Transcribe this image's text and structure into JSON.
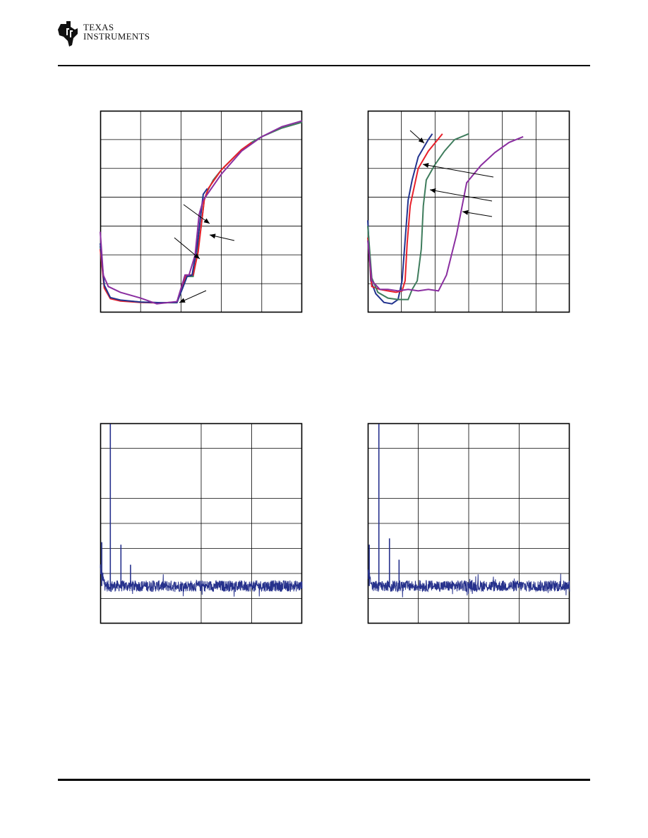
{
  "header": {
    "brand_line1": "TEXAS",
    "brand_line2": "INSTRUMENTS",
    "logo_icon": "ti-state-logo-icon"
  },
  "colors": {
    "series_blue": "#22338f",
    "series_red": "#e8202a",
    "series_green": "#3e7c5c",
    "series_purple": "#8a2ea0",
    "spectrum_blue": "#26318c",
    "grid": "#000000"
  },
  "chart_data": [
    {
      "type": "line",
      "panel": "top-left",
      "xlim": [
        0,
        10
      ],
      "ylim": [
        0,
        7
      ],
      "grid": true,
      "x_divisions": 5,
      "y_gridlines": [
        1,
        2,
        3,
        4,
        5,
        6
      ],
      "arrows": 4,
      "series": [
        {
          "color": "#3e7c5c",
          "x": [
            0,
            0.2,
            0.5,
            1.0,
            2.0,
            3.0,
            3.8,
            4.1,
            4.3,
            4.6,
            4.8,
            5.0,
            5.15,
            5.3,
            5.6,
            6.0,
            6.5,
            7.0,
            7.5,
            8.0,
            9.0,
            10.0
          ],
          "y": [
            2.3,
            0.9,
            0.5,
            0.42,
            0.36,
            0.34,
            0.34,
            0.9,
            1.25,
            1.25,
            2.0,
            3.0,
            3.9,
            4.2,
            4.6,
            4.95,
            5.3,
            5.65,
            5.9,
            6.1,
            6.4,
            6.6
          ]
        },
        {
          "color": "#e8202a",
          "x": [
            0,
            0.2,
            0.5,
            1.0,
            2.0,
            3.0,
            3.8,
            4.05,
            4.25,
            4.6,
            4.85,
            5.0,
            5.15,
            5.35,
            5.7,
            6.0,
            6.5,
            7.0,
            7.5
          ],
          "y": [
            2.2,
            0.85,
            0.48,
            0.4,
            0.35,
            0.33,
            0.36,
            0.9,
            1.3,
            1.3,
            2.1,
            3.0,
            3.9,
            4.3,
            4.65,
            4.95,
            5.3,
            5.65,
            5.9
          ]
        },
        {
          "color": "#22338f",
          "x": [
            0,
            0.2,
            0.5,
            1.0,
            2.0,
            3.0,
            3.8,
            4.1,
            4.3,
            4.55,
            4.8,
            5.0,
            5.1,
            5.3
          ],
          "y": [
            2.4,
            0.95,
            0.52,
            0.43,
            0.36,
            0.34,
            0.35,
            0.88,
            1.25,
            1.3,
            2.3,
            3.5,
            4.1,
            4.3
          ]
        },
        {
          "color": "#8a2ea0",
          "x": [
            0,
            0.15,
            0.4,
            1.0,
            2.0,
            2.8,
            3.8,
            4.2,
            4.4,
            4.7,
            4.9,
            5.1,
            5.3,
            6.0,
            7.0,
            8.0,
            9.0,
            10.0
          ],
          "y": [
            2.8,
            1.3,
            0.9,
            0.7,
            0.5,
            0.3,
            0.38,
            1.3,
            1.3,
            2.0,
            3.4,
            3.9,
            4.1,
            4.8,
            5.6,
            6.1,
            6.45,
            6.65
          ]
        }
      ]
    },
    {
      "type": "line",
      "panel": "top-right",
      "xlim": [
        0,
        10
      ],
      "ylim": [
        0,
        7
      ],
      "grid": true,
      "x_divisions": 6,
      "y_gridlines": [
        1,
        2,
        3,
        4,
        5,
        6
      ],
      "arrows": 4,
      "series": [
        {
          "color": "#22338f",
          "x": [
            0,
            0.15,
            0.4,
            0.8,
            1.2,
            1.5,
            1.7,
            1.85,
            2.0,
            2.2,
            2.5,
            3.0,
            3.2
          ],
          "y": [
            3.2,
            1.1,
            0.65,
            0.35,
            0.3,
            0.45,
            1.1,
            2.5,
            3.9,
            4.6,
            5.4,
            6.0,
            6.2
          ]
        },
        {
          "color": "#e8202a",
          "x": [
            0,
            0.2,
            0.6,
            1.0,
            1.4,
            1.7,
            1.85,
            1.95,
            2.1,
            2.25,
            2.5,
            3.0,
            3.7
          ],
          "y": [
            2.6,
            0.9,
            0.8,
            0.75,
            0.7,
            0.75,
            1.1,
            2.4,
            3.7,
            4.2,
            5.0,
            5.6,
            6.2
          ]
        },
        {
          "color": "#3e7c5c",
          "x": [
            0,
            0.2,
            0.5,
            1.0,
            1.5,
            2.0,
            2.2,
            2.45,
            2.65,
            2.75,
            2.9,
            3.3,
            3.8,
            4.3,
            5.0
          ],
          "y": [
            3.0,
            1.2,
            0.7,
            0.5,
            0.45,
            0.45,
            0.8,
            1.1,
            2.2,
            3.7,
            4.6,
            5.1,
            5.6,
            6.0,
            6.2
          ]
        },
        {
          "color": "#8a2ea0",
          "x": [
            0,
            0.2,
            0.6,
            1.0,
            1.5,
            2.0,
            2.5,
            3.0,
            3.5,
            3.9,
            4.4,
            4.9,
            5.6,
            6.3,
            7.0,
            7.7
          ],
          "y": [
            2.5,
            1.1,
            0.8,
            0.8,
            0.75,
            0.8,
            0.75,
            0.8,
            0.75,
            1.3,
            2.7,
            4.5,
            5.1,
            5.55,
            5.9,
            6.1
          ]
        }
      ]
    },
    {
      "type": "line",
      "panel": "bottom-left",
      "description": "spectrum",
      "xlim": [
        0,
        4
      ],
      "ylim": [
        -160,
        0
      ],
      "grid": true,
      "x_gridlines": [
        2,
        3
      ],
      "y_gridlines": [
        -20,
        -60,
        -80,
        -100,
        -120,
        -140
      ],
      "noise_floor": -130,
      "spurs": [
        {
          "x": 0.03,
          "y": -95
        },
        {
          "x": 0.2,
          "y": 0
        },
        {
          "x": 0.41,
          "y": -97
        },
        {
          "x": 0.6,
          "y": -113
        }
      ],
      "series": [
        {
          "color": "#26318c"
        }
      ]
    },
    {
      "type": "line",
      "panel": "bottom-right",
      "description": "spectrum",
      "xlim": [
        0,
        4
      ],
      "ylim": [
        -160,
        0
      ],
      "grid": true,
      "x_gridlines": [
        1,
        2,
        3
      ],
      "y_gridlines": [
        -20,
        -60,
        -80,
        -100,
        -120,
        -140
      ],
      "noise_floor": -130,
      "spurs": [
        {
          "x": 0.03,
          "y": -97
        },
        {
          "x": 0.22,
          "y": 0
        },
        {
          "x": 0.43,
          "y": -92
        },
        {
          "x": 0.62,
          "y": -109
        }
      ],
      "series": [
        {
          "color": "#26318c"
        }
      ]
    }
  ]
}
